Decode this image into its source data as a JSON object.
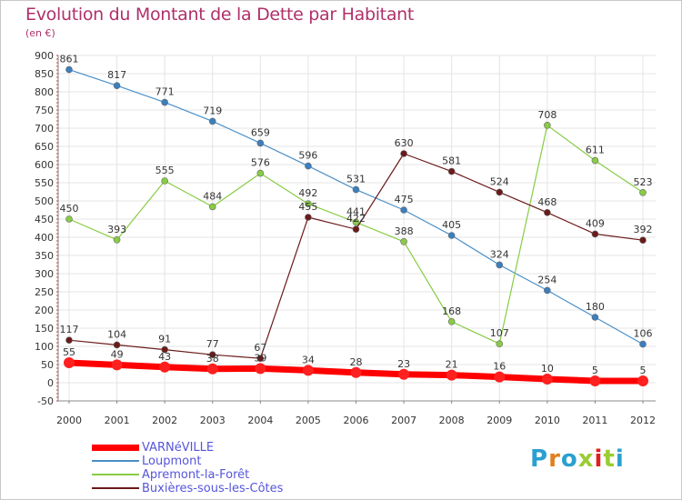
{
  "title": "Evolution du Montant de la Dette par Habitant",
  "subtitle": "(en €)",
  "brand": "Proxiti",
  "brand_colors": [
    "#2aa0d0",
    "#e08020",
    "#2aa0d0",
    "#9acd32",
    "#e02020",
    "#9acd32",
    "#2aa0d0"
  ],
  "chart_data": {
    "type": "line",
    "title": "Evolution du Montant de la Dette par Habitant",
    "ylabel": "(en €)",
    "xlabel": "",
    "x": [
      "2000",
      "2001",
      "2002",
      "2003",
      "2004",
      "2005",
      "2006",
      "2007",
      "2008",
      "2009",
      "2010",
      "2011",
      "2012"
    ],
    "ylim": [
      -50,
      900
    ],
    "yticks": [
      "-50",
      "0",
      "50",
      "100",
      "150",
      "200",
      "250",
      "300",
      "350",
      "400",
      "450",
      "500",
      "550",
      "600",
      "650",
      "700",
      "750",
      "800",
      "850",
      "900"
    ],
    "grid": true,
    "legend_position": "bottom-left",
    "series": [
      {
        "name": "VARNéVILLE",
        "color": "#ff0000",
        "values": [
          55,
          49,
          43,
          38,
          39,
          34,
          28,
          23,
          21,
          16,
          10,
          5,
          5
        ]
      },
      {
        "name": "Loupmont",
        "color": "#4a90c8",
        "values": [
          861,
          817,
          771,
          719,
          659,
          596,
          531,
          475,
          405,
          324,
          254,
          180,
          106
        ]
      },
      {
        "name": "Apremont-la-Forêt",
        "color": "#88cc44",
        "values": [
          450,
          393,
          555,
          484,
          576,
          492,
          441,
          388,
          168,
          107,
          708,
          611,
          523
        ]
      },
      {
        "name": "Buxières-sous-les-Côtes",
        "color": "#6b1a1a",
        "values": [
          117,
          104,
          91,
          77,
          67,
          455,
          422,
          630,
          581,
          524,
          468,
          409,
          392
        ]
      }
    ]
  }
}
